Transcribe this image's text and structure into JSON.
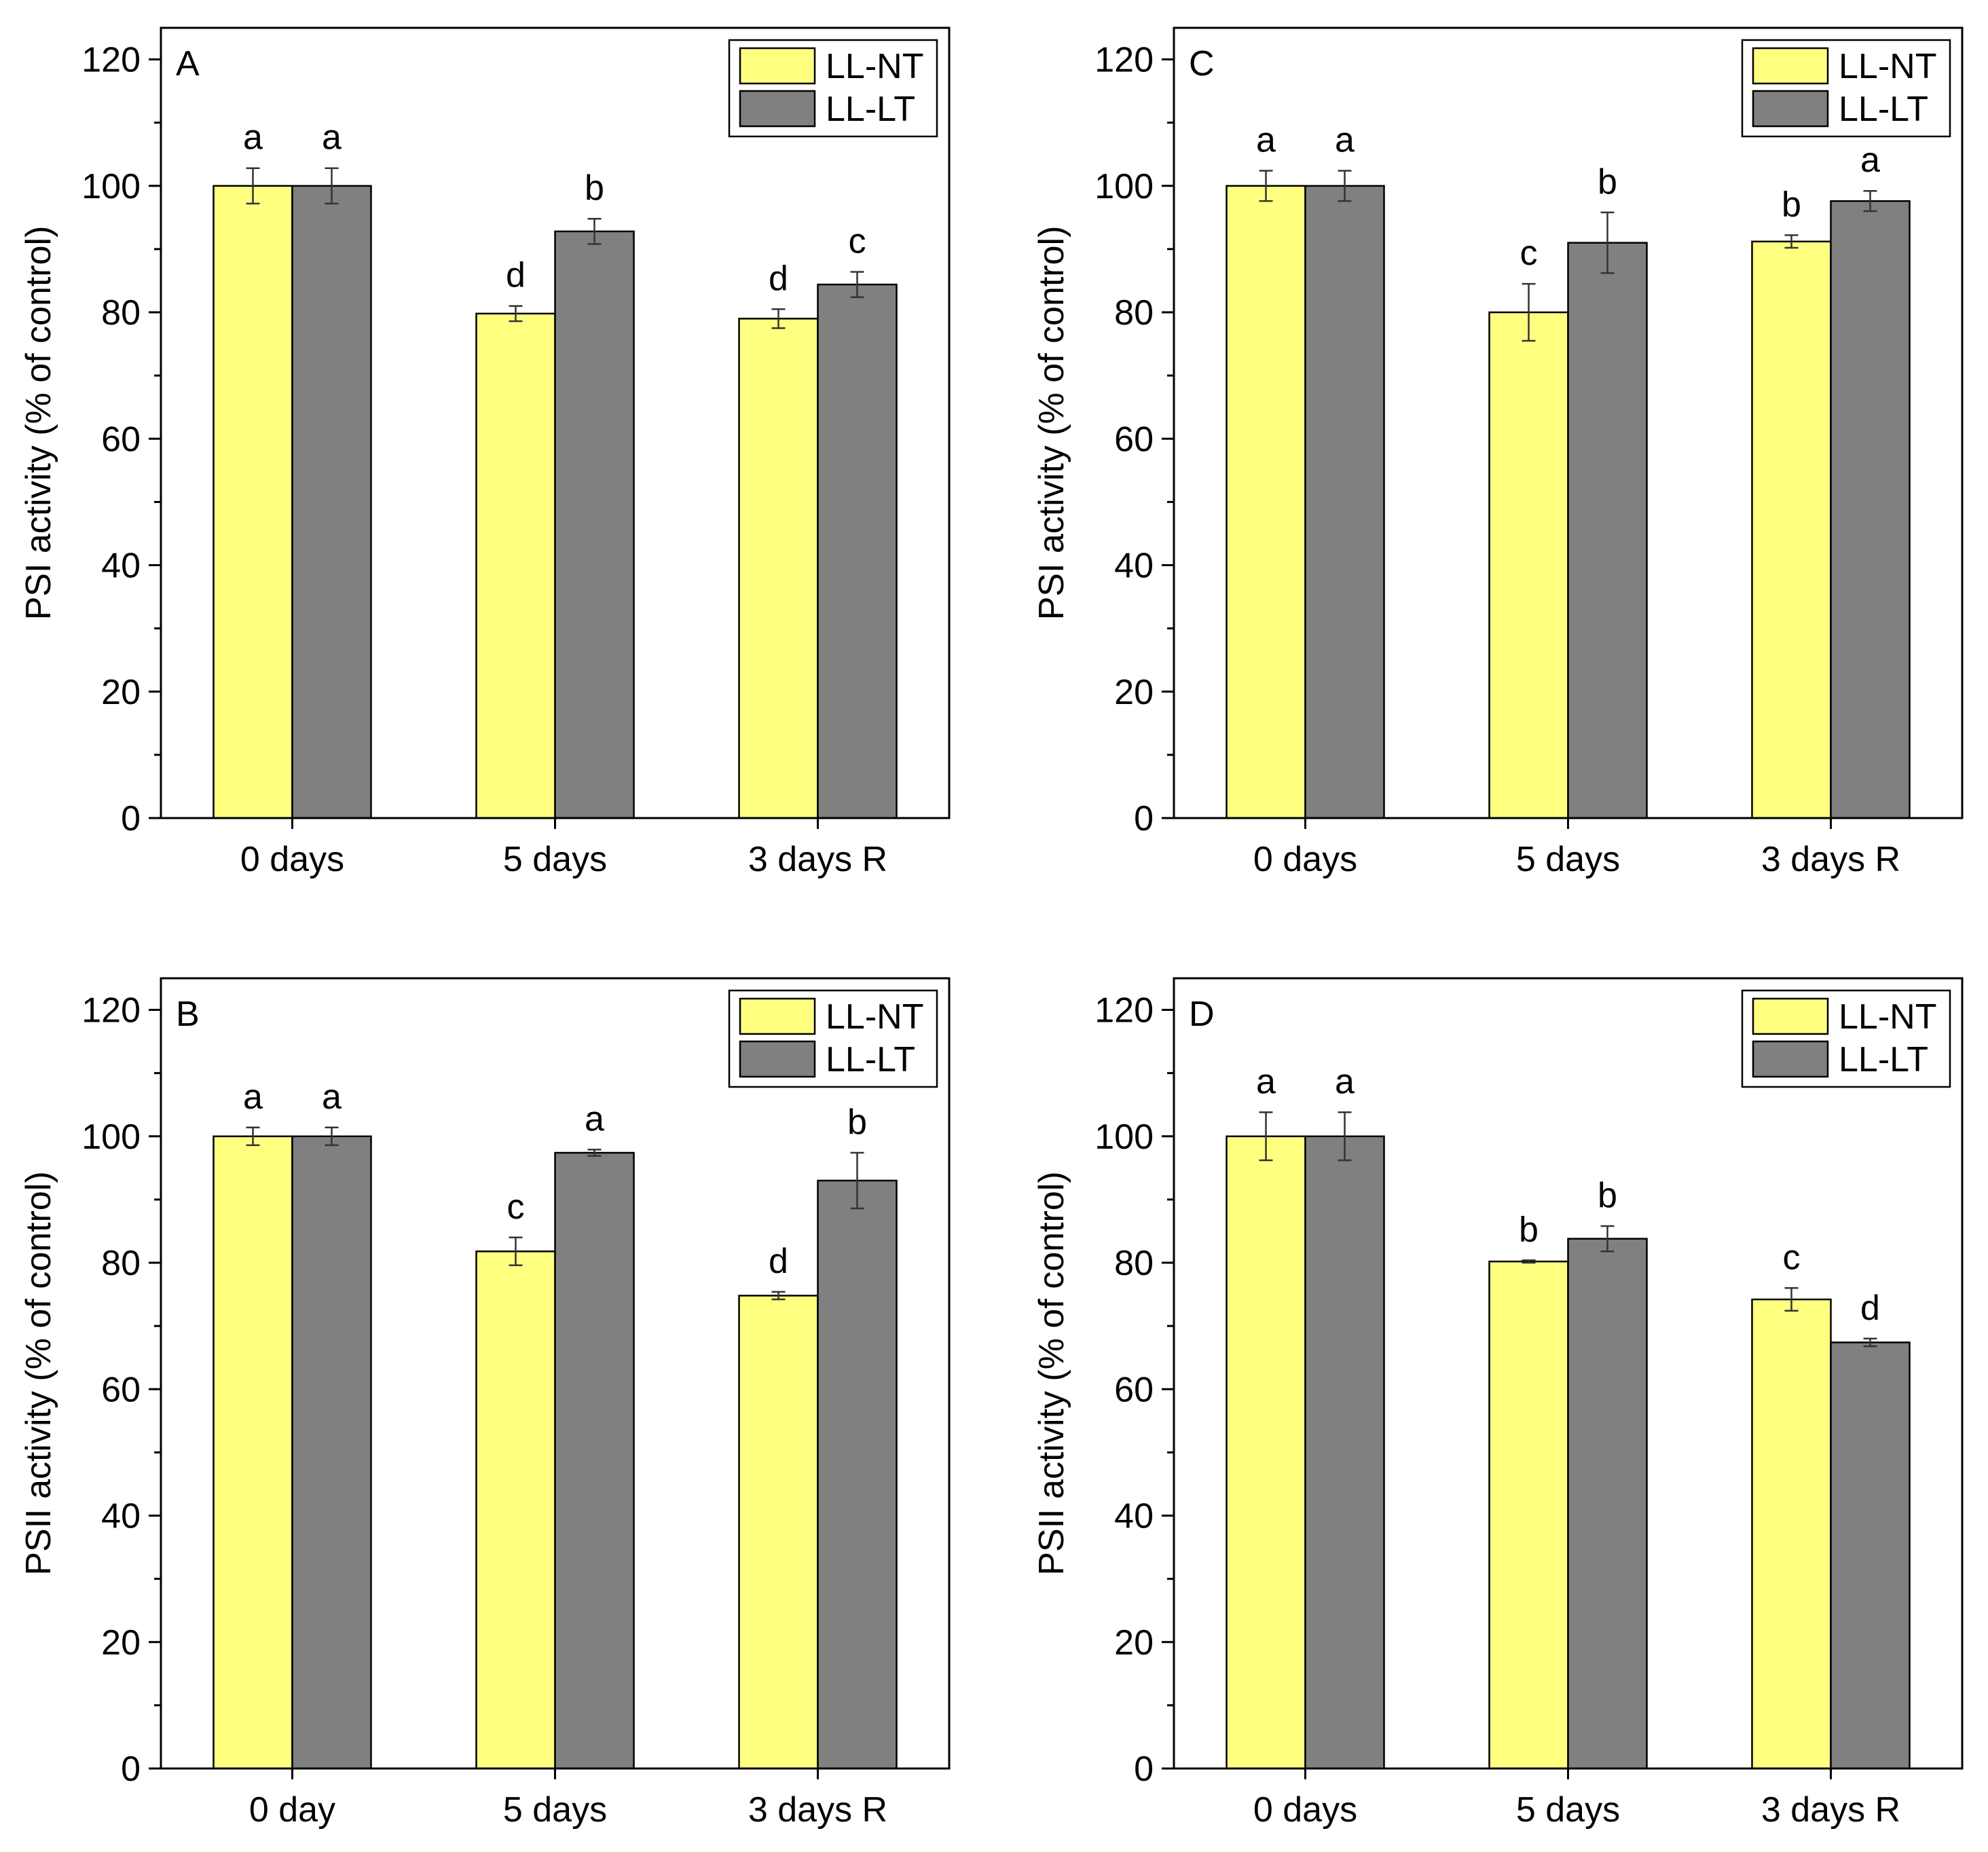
{
  "chart_data": [
    {
      "type": "bar",
      "panel_label": "A",
      "ylabel": "PSI activity (% of control)",
      "ylim": [
        0,
        125
      ],
      "yticks": [
        0,
        20,
        40,
        60,
        80,
        100,
        120
      ],
      "categories": [
        "0 days",
        "5 days",
        "3 days R"
      ],
      "series": [
        {
          "name": "LL-NT",
          "color": "#ffff80",
          "values": [
            100.0,
            79.8,
            79.0
          ],
          "errors": [
            2.8,
            1.2,
            1.5
          ],
          "letters": [
            "a",
            "d",
            "d"
          ]
        },
        {
          "name": "LL-LT",
          "color": "#808080",
          "values": [
            100.0,
            92.8,
            84.4
          ],
          "errors": [
            2.8,
            2.0,
            2.0
          ],
          "letters": [
            "a",
            "b",
            "c"
          ]
        }
      ],
      "legend_position": "top-right"
    },
    {
      "type": "bar",
      "panel_label": "C",
      "ylabel": "PSI activity (% of control)",
      "ylim": [
        0,
        125
      ],
      "yticks": [
        0,
        20,
        40,
        60,
        80,
        100,
        120
      ],
      "categories": [
        "0 days",
        "5 days",
        "3 days R"
      ],
      "series": [
        {
          "name": "LL-NT",
          "color": "#ffff80",
          "values": [
            100.0,
            80.0,
            91.2
          ],
          "errors": [
            2.4,
            4.5,
            1.0
          ],
          "letters": [
            "a",
            "c",
            "b"
          ]
        },
        {
          "name": "LL-LT",
          "color": "#808080",
          "values": [
            100.0,
            91.0,
            97.6
          ],
          "errors": [
            2.4,
            4.8,
            1.6
          ],
          "letters": [
            "a",
            "b",
            "a"
          ]
        }
      ],
      "legend_position": "top-right"
    },
    {
      "type": "bar",
      "panel_label": "B",
      "ylabel": "PSII activity (% of control)",
      "ylim": [
        0,
        125
      ],
      "yticks": [
        0,
        20,
        40,
        60,
        80,
        100,
        120
      ],
      "categories": [
        "0 day",
        "5 days",
        "3 days R"
      ],
      "series": [
        {
          "name": "LL-NT",
          "color": "#ffff80",
          "values": [
            100.0,
            81.8,
            74.8
          ],
          "errors": [
            1.4,
            2.2,
            0.6
          ],
          "letters": [
            "a",
            "c",
            "d"
          ]
        },
        {
          "name": "LL-LT",
          "color": "#808080",
          "values": [
            100.0,
            97.4,
            93.0
          ],
          "errors": [
            1.4,
            0.5,
            4.4
          ],
          "letters": [
            "a",
            "a",
            "b"
          ]
        }
      ],
      "legend_position": "top-right"
    },
    {
      "type": "bar",
      "panel_label": "D",
      "ylabel": "PSII activity (% of control)",
      "ylim": [
        0,
        125
      ],
      "yticks": [
        0,
        20,
        40,
        60,
        80,
        100,
        120
      ],
      "categories": [
        "0 days",
        "5 days",
        "3 days R"
      ],
      "series": [
        {
          "name": "LL-NT",
          "color": "#ffff80",
          "values": [
            100.0,
            80.2,
            74.2
          ],
          "errors": [
            3.8,
            0.2,
            1.8
          ],
          "letters": [
            "a",
            "b",
            "c"
          ]
        },
        {
          "name": "LL-LT",
          "color": "#808080",
          "values": [
            100.0,
            83.8,
            67.4
          ],
          "errors": [
            3.8,
            2.0,
            0.6
          ],
          "letters": [
            "a",
            "b",
            "d"
          ]
        }
      ],
      "legend_position": "top-right"
    }
  ]
}
